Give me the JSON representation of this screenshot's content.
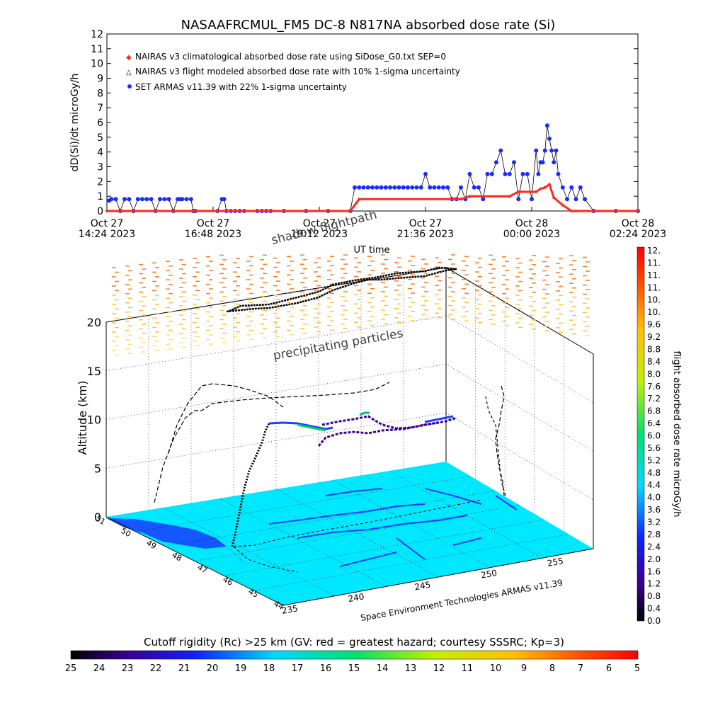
{
  "title": "NASAAFRCMUL_FM5 DC-8   N817NA absorbed dose rate (Si)",
  "colors": {
    "nairas_clim": "#ff2a1a",
    "nairas_flight": "#000000",
    "armas": "#1a2cff",
    "ground": "#00e8ff",
    "coast": "#1a3cff"
  },
  "chart_data": [
    {
      "type": "line",
      "title": "NASAAFRCMUL_FM5 DC-8   N817NA absorbed dose rate (Si)",
      "ylabel": "dD(Si)/dt microGy/h",
      "xlabel": "UT time",
      "ylim": [
        0,
        12
      ],
      "y_ticks": [
        "0",
        "1",
        "2",
        "3",
        "4",
        "5",
        "6",
        "7",
        "8",
        "9",
        "10",
        "11",
        "12"
      ],
      "x_ticks": [
        {
          "line1": "Oct 27",
          "line2": "14:24 2023"
        },
        {
          "line1": "Oct 27",
          "line2": "16:48 2023"
        },
        {
          "line1": "Oct 27",
          "line2": "19:12 2023"
        },
        {
          "line1": "Oct 27",
          "line2": "21:36 2023"
        },
        {
          "line1": "Oct 28",
          "line2": "00:00 2023"
        },
        {
          "line1": "Oct 28",
          "line2": "02:24 2023"
        }
      ],
      "xlim_hours": [
        0,
        12
      ],
      "legend": [
        "NAIRAS v3 climatological absorbed dose rate using SiDose_G0.txt SEP=0",
        "NAIRAS v3 flight modeled absorbed dose rate with 10% 1-sigma uncertainty",
        "SET ARMAS v11.39 with 22% 1-sigma uncertainty"
      ],
      "legend_placement": "top-left",
      "series": [
        {
          "name": "NAIRAS v3 climatological absorbed dose rate using SiDose_G0.txt SEP=0",
          "x": [
            0,
            5.5,
            5.7,
            8.0,
            8.2,
            9.1,
            9.3,
            9.7,
            9.8,
            9.9,
            10.0,
            10.1,
            10.3,
            10.5,
            10.6,
            12
          ],
          "y": [
            0,
            0,
            0.8,
            0.8,
            1.0,
            1.0,
            1.3,
            1.3,
            1.5,
            1.6,
            1.8,
            0.9,
            0.4,
            0,
            0,
            0
          ]
        },
        {
          "name": "SET ARMAS v11.39 with 22% 1-sigma uncertainty",
          "x": [
            0.05,
            0.1,
            0.2,
            0.3,
            0.4,
            0.5,
            0.6,
            0.7,
            0.8,
            0.9,
            1.0,
            1.1,
            1.2,
            1.3,
            1.4,
            1.5,
            1.6,
            1.65,
            1.7,
            1.8,
            1.9,
            1.95,
            2.0,
            2.5,
            2.6,
            2.65,
            2.7,
            2.8,
            2.9,
            3.0,
            3.1,
            3.4,
            3.5,
            3.6,
            3.7,
            4.0,
            4.5,
            5.0,
            5.5,
            5.6,
            5.7,
            5.8,
            5.9,
            6.0,
            6.1,
            6.2,
            6.3,
            6.4,
            6.5,
            6.6,
            6.7,
            6.8,
            6.9,
            7.0,
            7.1,
            7.2,
            7.3,
            7.4,
            7.5,
            7.6,
            7.7,
            7.8,
            7.9,
            8.0,
            8.1,
            8.2,
            8.3,
            8.4,
            8.5,
            8.6,
            8.7,
            8.8,
            8.9,
            9.0,
            9.1,
            9.2,
            9.3,
            9.4,
            9.5,
            9.6,
            9.7,
            9.75,
            9.8,
            9.85,
            9.9,
            9.95,
            10.0,
            10.05,
            10.1,
            10.15,
            10.2,
            10.3,
            10.4,
            10.5,
            10.6,
            10.7,
            10.8,
            11.0,
            11.5,
            12.0
          ],
          "y": [
            0.7,
            0.8,
            0.8,
            0,
            0.8,
            0.8,
            0,
            0.8,
            0.8,
            0.8,
            0.8,
            0,
            0.8,
            0.8,
            0.8,
            0,
            0.8,
            0.8,
            0.8,
            0.8,
            0.8,
            0,
            0,
            0,
            0.8,
            0.8,
            0,
            0,
            0,
            0,
            0,
            0,
            0,
            0,
            0,
            0,
            0,
            0,
            0,
            1.6,
            1.6,
            1.6,
            1.6,
            1.6,
            1.6,
            1.6,
            1.6,
            1.6,
            1.6,
            1.6,
            1.6,
            1.6,
            1.6,
            1.6,
            1.6,
            2.5,
            1.6,
            1.6,
            1.6,
            1.6,
            1.6,
            0.8,
            0.8,
            1.6,
            0.8,
            2.5,
            1.6,
            1.6,
            0.8,
            2.5,
            2.5,
            3.3,
            4.1,
            2.5,
            2.5,
            3.3,
            0.8,
            2.5,
            2.5,
            0.8,
            4.1,
            2.5,
            3.3,
            3.3,
            4.1,
            5.8,
            4.9,
            4.1,
            3.3,
            4.1,
            2.5,
            1.6,
            0.8,
            1.6,
            0.8,
            1.6,
            0.8,
            0,
            0,
            0
          ]
        }
      ]
    },
    {
      "type": "scatter",
      "subtype": "3d flight path over cutoff rigidity map",
      "zlabel": "Altitude (km)",
      "z_ticks": [
        "0",
        "5",
        "10",
        "15",
        "20"
      ],
      "zlim": [
        0,
        20
      ],
      "x_ticks": [
        "235",
        "240",
        "245",
        "250",
        "255"
      ],
      "y_ticks": [
        "44",
        "45",
        "46",
        "47",
        "48",
        "49",
        "50",
        "51"
      ],
      "annotations": [
        "shadow flightpath",
        "precipitating particles"
      ],
      "credit": "Space Environment Technologies ARMAS v11.39",
      "legend_placement": "right"
    },
    {
      "type": "heatmap",
      "role": "colorbar-right",
      "label": "flight absorbed dose rate microGy/h",
      "ticks": [
        "0.0",
        "0.4",
        "0.8",
        "1.2",
        "1.6",
        "2.0",
        "2.4",
        "2.8",
        "3.2",
        "3.6",
        "4.0",
        "4.4",
        "4.8",
        "5.2",
        "5.6",
        "6.0",
        "6.4",
        "6.8",
        "7.2",
        "7.6",
        "8.0",
        "8.4",
        "8.8",
        "9.2",
        "9.6",
        "10.",
        "10.",
        "11.",
        "11.",
        "11.",
        "12."
      ]
    },
    {
      "type": "heatmap",
      "role": "colorbar-bottom",
      "label": "Cutoff rigidity (Rc) >25 km (GV: red = greatest hazard; courtesy SSSRC; Kp=3)",
      "ticks": [
        "25",
        "24",
        "23",
        "22",
        "21",
        "20",
        "19",
        "18",
        "17",
        "16",
        "15",
        "14",
        "13",
        "12",
        "11",
        "10",
        "9",
        "8",
        "7",
        "6",
        "5"
      ]
    }
  ]
}
